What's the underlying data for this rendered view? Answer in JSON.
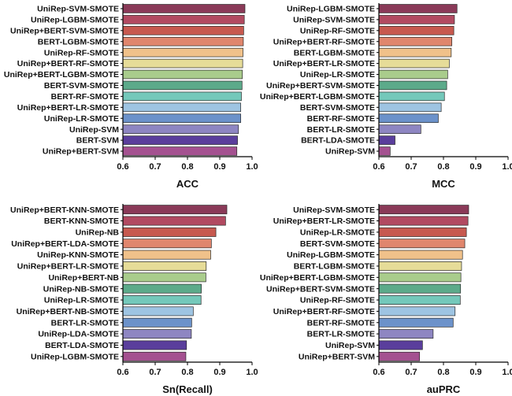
{
  "palette": [
    "#8a3a58",
    "#b24a61",
    "#c7594f",
    "#e0866d",
    "#f0c18a",
    "#e6dc98",
    "#a9cc8c",
    "#5caa8a",
    "#74c8ba",
    "#9ec4e2",
    "#6c92ca",
    "#8e86c2",
    "#5a3e9c",
    "#a45190"
  ],
  "chart_data": [
    {
      "type": "bar",
      "orientation": "horizontal",
      "title": "ACC",
      "xlim": [
        0.6,
        1.0
      ],
      "xticks": [
        "0.6",
        "0.7",
        "0.8",
        "0.9",
        "1.0"
      ],
      "categories": [
        "UniRep-SVM-SMOTE",
        "UniRep-LGBM-SMOTE",
        "UniRep+BERT-SVM-SMOTE",
        "BERT-LGBM-SMOTE",
        "UniRep-RF-SMOTE",
        "UniRep+BERT-RF-SMOTE",
        "UniRep+BERT-LGBM-SMOTE",
        "BERT-SVM-SMOTE",
        "BERT-RF-SMOTE",
        "UniRep+BERT-LR-SMOTE",
        "UniRep-LR-SMOTE",
        "UniRep-SVM",
        "BERT-SVM",
        "UniRep+BERT-SVM"
      ],
      "values": [
        0.978,
        0.976,
        0.974,
        0.973,
        0.972,
        0.971,
        0.97,
        0.969,
        0.967,
        0.965,
        0.965,
        0.958,
        0.955,
        0.953
      ]
    },
    {
      "type": "bar",
      "orientation": "horizontal",
      "title": "MCC",
      "xlim": [
        0.6,
        1.0
      ],
      "xticks": [
        "0.6",
        "0.7",
        "0.8",
        "0.9",
        "1.0"
      ],
      "categories": [
        "UniRep-LGBM-SMOTE",
        "UniRep-SVM-SMOTE",
        "UniRep-RF-SMOTE",
        "UniRep+BERT-RF-SMOTE",
        "BERT-LGBM-SMOTE",
        "UniRep+BERT-LR-SMOTE",
        "UniRep-LR-SMOTE",
        "UniRep+BERT-SVM-SMOTE",
        "UniRep+BERT-LGBM-SMOTE",
        "BERT-SVM-SMOTE",
        "BERT-RF-SMOTE",
        "BERT-LR-SMOTE",
        "BERT-LDA-SMOTE",
        "UniRep-SVM"
      ],
      "values": [
        0.842,
        0.834,
        0.832,
        0.826,
        0.824,
        0.818,
        0.813,
        0.81,
        0.803,
        0.793,
        0.784,
        0.73,
        0.65,
        0.635
      ]
    },
    {
      "type": "bar",
      "orientation": "horizontal",
      "title": "Sn(Recall)",
      "xlim": [
        0.6,
        1.0
      ],
      "xticks": [
        "0.6",
        "0.7",
        "0.8",
        "0.9",
        "1.0"
      ],
      "categories": [
        "UniRep+BERT-KNN-SMOTE",
        "BERT-KNN-SMOTE",
        "UniRep-NB",
        "UniRep+BERT-LDA-SMOTE",
        "UniRep-KNN-SMOTE",
        "UniRep+BERT-LR-SMOTE",
        "UniRep+BERT-NB",
        "UniRep-NB-SMOTE",
        "UniRep-LR-SMOTE",
        "UniRep+BERT-NB-SMOTE",
        "BERT-LR-SMOTE",
        "UniRep-LDA-SMOTE",
        "BERT-LDA-SMOTE",
        "UniRep-LGBM-SMOTE"
      ],
      "values": [
        0.922,
        0.918,
        0.888,
        0.874,
        0.872,
        0.858,
        0.857,
        0.843,
        0.842,
        0.818,
        0.813,
        0.812,
        0.797,
        0.795
      ]
    },
    {
      "type": "bar",
      "orientation": "horizontal",
      "title": "auPRC",
      "xlim": [
        0.6,
        1.0
      ],
      "xticks": [
        "0.6",
        "0.7",
        "0.8",
        "0.9",
        "1.0"
      ],
      "categories": [
        "UniRep-SVM-SMOTE",
        "UniRep+BERT-LR-SMOTE",
        "UniRep-LR-SMOTE",
        "BERT-SVM-SMOTE",
        "UniRep-LGBM-SMOTE",
        "BERT-LGBM-SMOTE",
        "UniRep+BERT-LGBM-SMOTE",
        "UniRep+BERT-SVM-SMOTE",
        "UniRep-RF-SMOTE",
        "UniRep+BERT-RF-SMOTE",
        "BERT-RF-SMOTE",
        "BERT-LR-SMOTE",
        "UniRep-SVM",
        "UniRep+BERT-SVM"
      ],
      "values": [
        0.878,
        0.876,
        0.871,
        0.866,
        0.859,
        0.856,
        0.854,
        0.853,
        0.852,
        0.836,
        0.83,
        0.768,
        0.735,
        0.726
      ]
    }
  ]
}
